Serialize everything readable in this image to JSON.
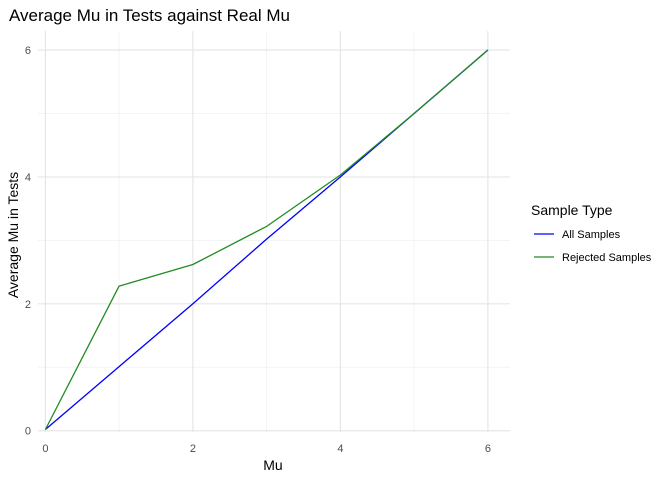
{
  "chart_data": {
    "type": "line",
    "title": "Average Mu in Tests against Real Mu",
    "xlabel": "Mu",
    "ylabel": "Average Mu in Tests",
    "x": [
      0,
      1,
      2,
      3,
      4,
      5,
      6
    ],
    "xticks": [
      0,
      2,
      4,
      6
    ],
    "yticks": [
      0,
      2,
      4,
      6
    ],
    "xlim": [
      -0.1,
      6.3
    ],
    "ylim": [
      -0.02,
      6.3
    ],
    "grid": true,
    "legend": {
      "title": "Sample Type",
      "position": "right"
    },
    "series": [
      {
        "name": "All Samples",
        "color": "#0000ff",
        "values": [
          0.02,
          1.01,
          2.0,
          3.02,
          4.0,
          5.0,
          6.0
        ]
      },
      {
        "name": "Rejected Samples",
        "color": "#228b22",
        "values": [
          0.02,
          2.28,
          2.62,
          3.22,
          4.03,
          5.0,
          6.0
        ]
      }
    ]
  }
}
